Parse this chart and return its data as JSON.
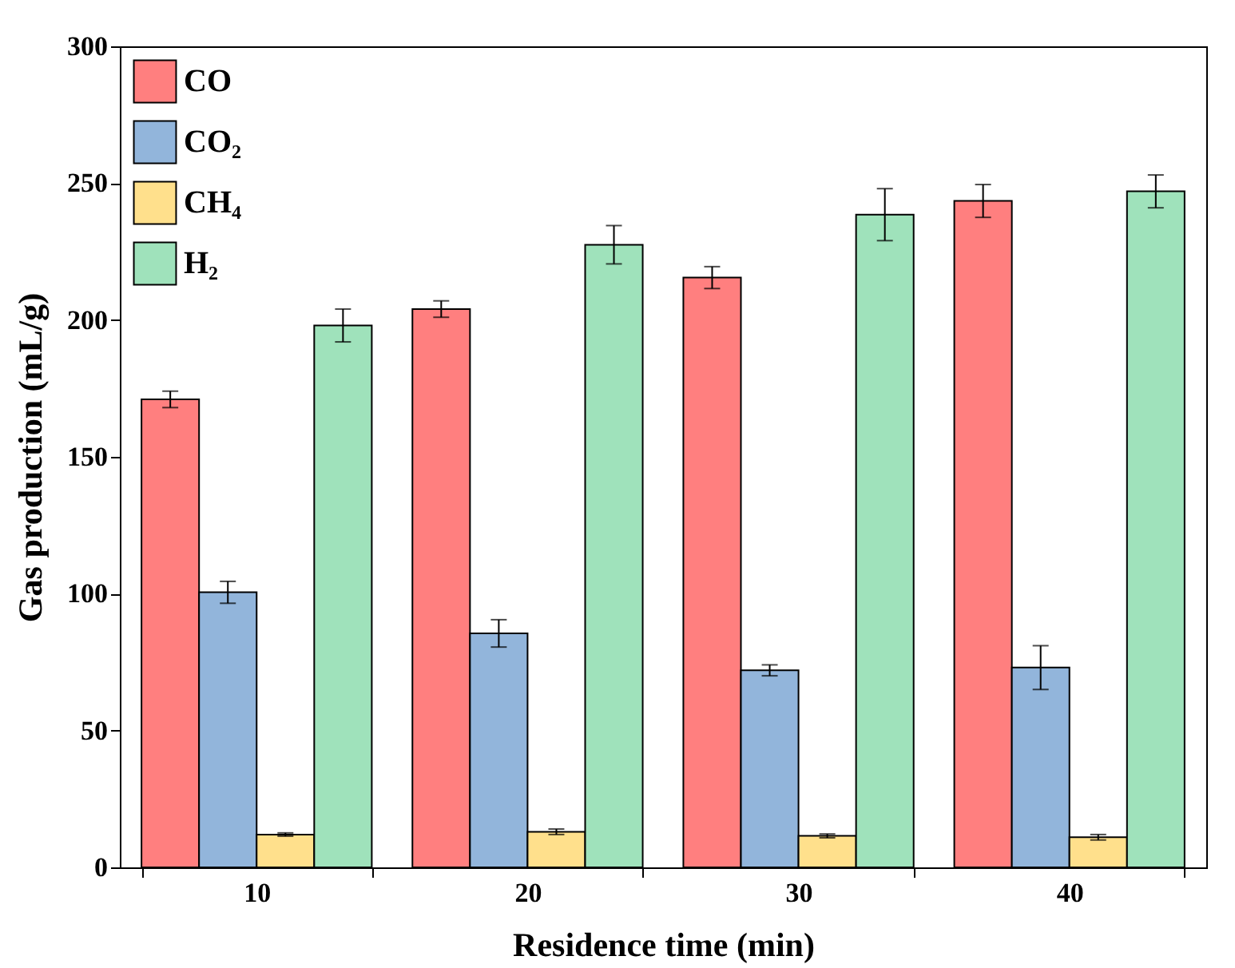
{
  "chart_data": {
    "type": "bar",
    "xlabel": "Residence time (min)",
    "ylabel": "Gas production (mL/g)",
    "categories": [
      "10",
      "20",
      "30",
      "40"
    ],
    "ylim": [
      0,
      300
    ],
    "yticks": [
      0,
      50,
      100,
      150,
      200,
      250,
      300
    ],
    "grid": false,
    "legend": "top left",
    "series": [
      {
        "name": "CO",
        "color": "#ff7f7f",
        "values": [
          171,
          204,
          215.5,
          243.5
        ],
        "errors": [
          3,
          3,
          4,
          6
        ]
      },
      {
        "name": "CO₂",
        "color": "#92b5db",
        "values": [
          100.5,
          85.5,
          72,
          73
        ],
        "errors": [
          4,
          5,
          2,
          8
        ]
      },
      {
        "name": "CH₄",
        "color": "#ffe08c",
        "values": [
          12,
          13,
          11.5,
          11
        ],
        "errors": [
          0.6,
          1,
          0.7,
          1
        ]
      },
      {
        "name": "H₂",
        "color": "#9fe2bb",
        "values": [
          198,
          227.5,
          238.5,
          247
        ],
        "errors": [
          6,
          7,
          9.5,
          6
        ]
      }
    ]
  }
}
